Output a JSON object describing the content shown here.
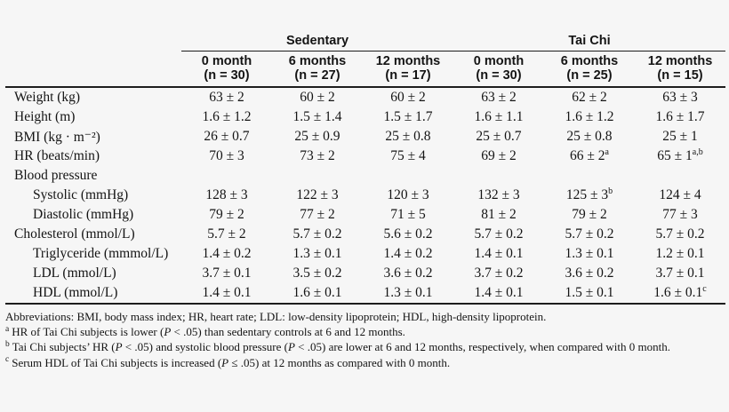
{
  "table": {
    "groups": [
      {
        "label": "Sedentary"
      },
      {
        "label": "Tai Chi"
      }
    ],
    "columns": [
      {
        "period": "0 month",
        "n": "(n = 30)"
      },
      {
        "period": "6 months",
        "n": "(n = 27)"
      },
      {
        "period": "12 months",
        "n": "(n = 17)"
      },
      {
        "period": "0 month",
        "n": "(n = 30)"
      },
      {
        "period": "6 months",
        "n": "(n = 25)"
      },
      {
        "period": "12 months",
        "n": "(n = 15)"
      }
    ],
    "rows": [
      {
        "label": "Weight (kg)",
        "values": [
          {
            "v": "63 ± 2"
          },
          {
            "v": "60 ± 2"
          },
          {
            "v": "60 ± 2"
          },
          {
            "v": "63 ± 2"
          },
          {
            "v": "62 ± 2"
          },
          {
            "v": "63 ± 3"
          }
        ]
      },
      {
        "label": "Height (m)",
        "values": [
          {
            "v": "1.6 ± 1.2"
          },
          {
            "v": "1.5 ± 1.4"
          },
          {
            "v": "1.5 ± 1.7"
          },
          {
            "v": "1.6 ± 1.1"
          },
          {
            "v": "1.6 ± 1.2"
          },
          {
            "v": "1.6 ± 1.7"
          }
        ]
      },
      {
        "label": "BMI (kg · m⁻²)",
        "values": [
          {
            "v": "26 ± 0.7"
          },
          {
            "v": "25 ± 0.9"
          },
          {
            "v": "25 ± 0.8"
          },
          {
            "v": "25 ± 0.7"
          },
          {
            "v": "25 ± 0.8"
          },
          {
            "v": "25 ± 1"
          }
        ]
      },
      {
        "label": "HR (beats/min)",
        "values": [
          {
            "v": "70 ± 3"
          },
          {
            "v": "73 ± 2"
          },
          {
            "v": "75 ± 4"
          },
          {
            "v": "69 ± 2"
          },
          {
            "v": "66 ± 2",
            "sup": "a"
          },
          {
            "v": "65 ± 1",
            "sup": "a,b"
          }
        ]
      },
      {
        "label": "Blood pressure",
        "values": []
      },
      {
        "label": "Systolic (mmHg)",
        "values": [
          {
            "v": "128 ± 3"
          },
          {
            "v": "122 ± 3"
          },
          {
            "v": "120 ± 3"
          },
          {
            "v": "132 ± 3"
          },
          {
            "v": "125 ± 3",
            "sup": "b"
          },
          {
            "v": "124 ± 4"
          }
        ]
      },
      {
        "label": "Diastolic (mmHg)",
        "values": [
          {
            "v": "79 ± 2"
          },
          {
            "v": "77 ± 2"
          },
          {
            "v": "71 ± 5"
          },
          {
            "v": "81 ± 2"
          },
          {
            "v": "79 ± 2"
          },
          {
            "v": "77 ± 3"
          }
        ]
      },
      {
        "label": "Cholesterol (mmol/L)",
        "values": [
          {
            "v": "5.7 ± 2"
          },
          {
            "v": "5.7 ± 0.2"
          },
          {
            "v": "5.6 ± 0.2"
          },
          {
            "v": "5.7 ± 0.2"
          },
          {
            "v": "5.7 ± 0.2"
          },
          {
            "v": "5.7 ± 0.2"
          }
        ]
      },
      {
        "label": "Triglyceride (mmmol/L)",
        "values": [
          {
            "v": "1.4 ± 0.2"
          },
          {
            "v": "1.3 ± 0.1"
          },
          {
            "v": "1.4 ± 0.2"
          },
          {
            "v": "1.4 ± 0.1"
          },
          {
            "v": "1.3 ± 0.1"
          },
          {
            "v": "1.2 ± 0.1"
          }
        ]
      },
      {
        "label": "LDL (mmol/L)",
        "values": [
          {
            "v": "3.7 ± 0.1"
          },
          {
            "v": "3.5 ± 0.2"
          },
          {
            "v": "3.6 ± 0.2"
          },
          {
            "v": "3.7 ± 0.2"
          },
          {
            "v": "3.6 ± 0.2"
          },
          {
            "v": "3.7 ± 0.1"
          }
        ]
      },
      {
        "label": "HDL (mmol/L)",
        "values": [
          {
            "v": "1.4 ± 0.1"
          },
          {
            "v": "1.6 ± 0.1"
          },
          {
            "v": "1.3 ± 0.1"
          },
          {
            "v": "1.4 ± 0.1"
          },
          {
            "v": "1.5 ± 0.1"
          },
          {
            "v": "1.6 ± 0.1",
            "sup": "c"
          }
        ]
      }
    ]
  },
  "footnotes": {
    "abbreviations": "Abbreviations: BMI, body mass index; HR, heart rate; LDL: low-density lipoprotein; HDL, high-density lipoprotein.",
    "a": {
      "marker": "a",
      "segments": [
        "HR of Tai Chi subjects is lower (",
        "P",
        " < .05) than sedentary controls at 6 and 12 months."
      ]
    },
    "b": {
      "marker": "b",
      "segments": [
        "Tai Chi subjects’ HR (",
        "P",
        " < .05) and systolic blood pressure (",
        "P",
        " < .05) are lower at 6 and 12 months, respectively, when compared with 0 month."
      ]
    },
    "c": {
      "marker": "c",
      "segments": [
        "Serum HDL of Tai Chi subjects is increased (",
        "P",
        " ≤ .05) at 12 months as compared with 0 month."
      ]
    }
  },
  "colors": {
    "background": "#f6f6f6",
    "text": "#141414",
    "rule": "#1d1d1d"
  }
}
